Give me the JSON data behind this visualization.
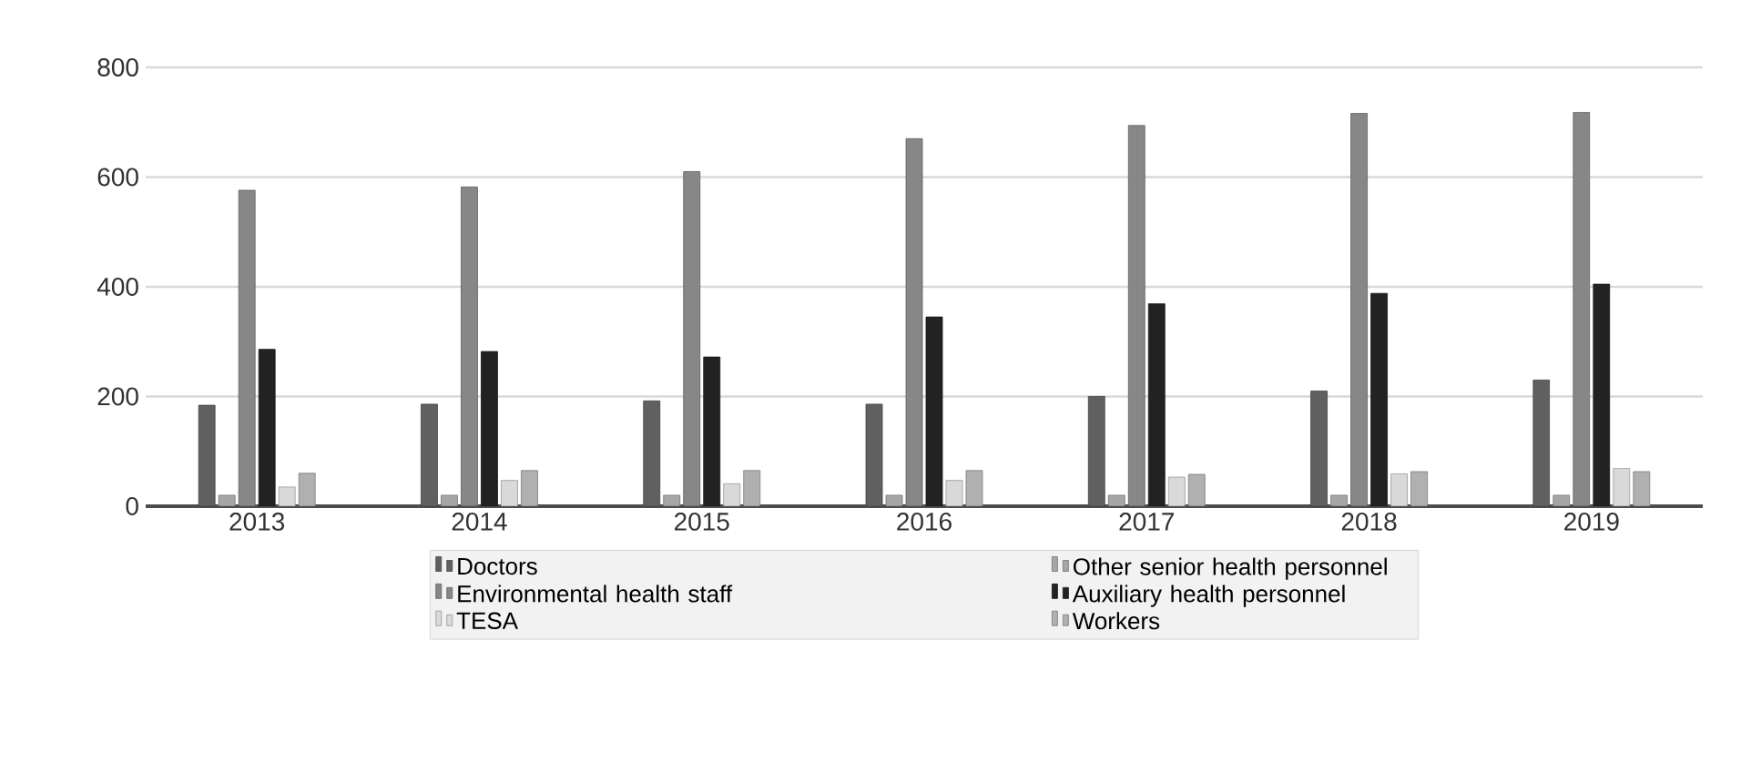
{
  "chart_data": {
    "type": "bar",
    "categories": [
      "2013",
      "2014",
      "2015",
      "2016",
      "2017",
      "2018",
      "2019"
    ],
    "series": [
      {
        "name": "Doctors",
        "color": "#606060",
        "values": [
          184,
          186,
          192,
          186,
          200,
          210,
          230
        ]
      },
      {
        "name": "Other senior health personnel",
        "color": "#a6a6a6",
        "values": [
          20,
          20,
          20,
          20,
          20,
          20,
          20
        ]
      },
      {
        "name": "Environmental health staff",
        "color": "#878787",
        "values": [
          576,
          582,
          610,
          670,
          694,
          716,
          718
        ]
      },
      {
        "name": "Auxiliary health personnel",
        "color": "#222222",
        "values": [
          286,
          282,
          272,
          345,
          369,
          388,
          405
        ]
      },
      {
        "name": "TESA",
        "color": "#d9d9d9",
        "values": [
          35,
          47,
          41,
          47,
          53,
          59,
          69
        ]
      },
      {
        "name": "Workers",
        "color": "#b0b0b0",
        "values": [
          60,
          65,
          65,
          65,
          58,
          63,
          63
        ]
      }
    ],
    "ylim": [
      0,
      800
    ],
    "yticks": [
      0,
      200,
      400,
      600,
      800
    ],
    "grid": "y",
    "legend": "bottom"
  }
}
